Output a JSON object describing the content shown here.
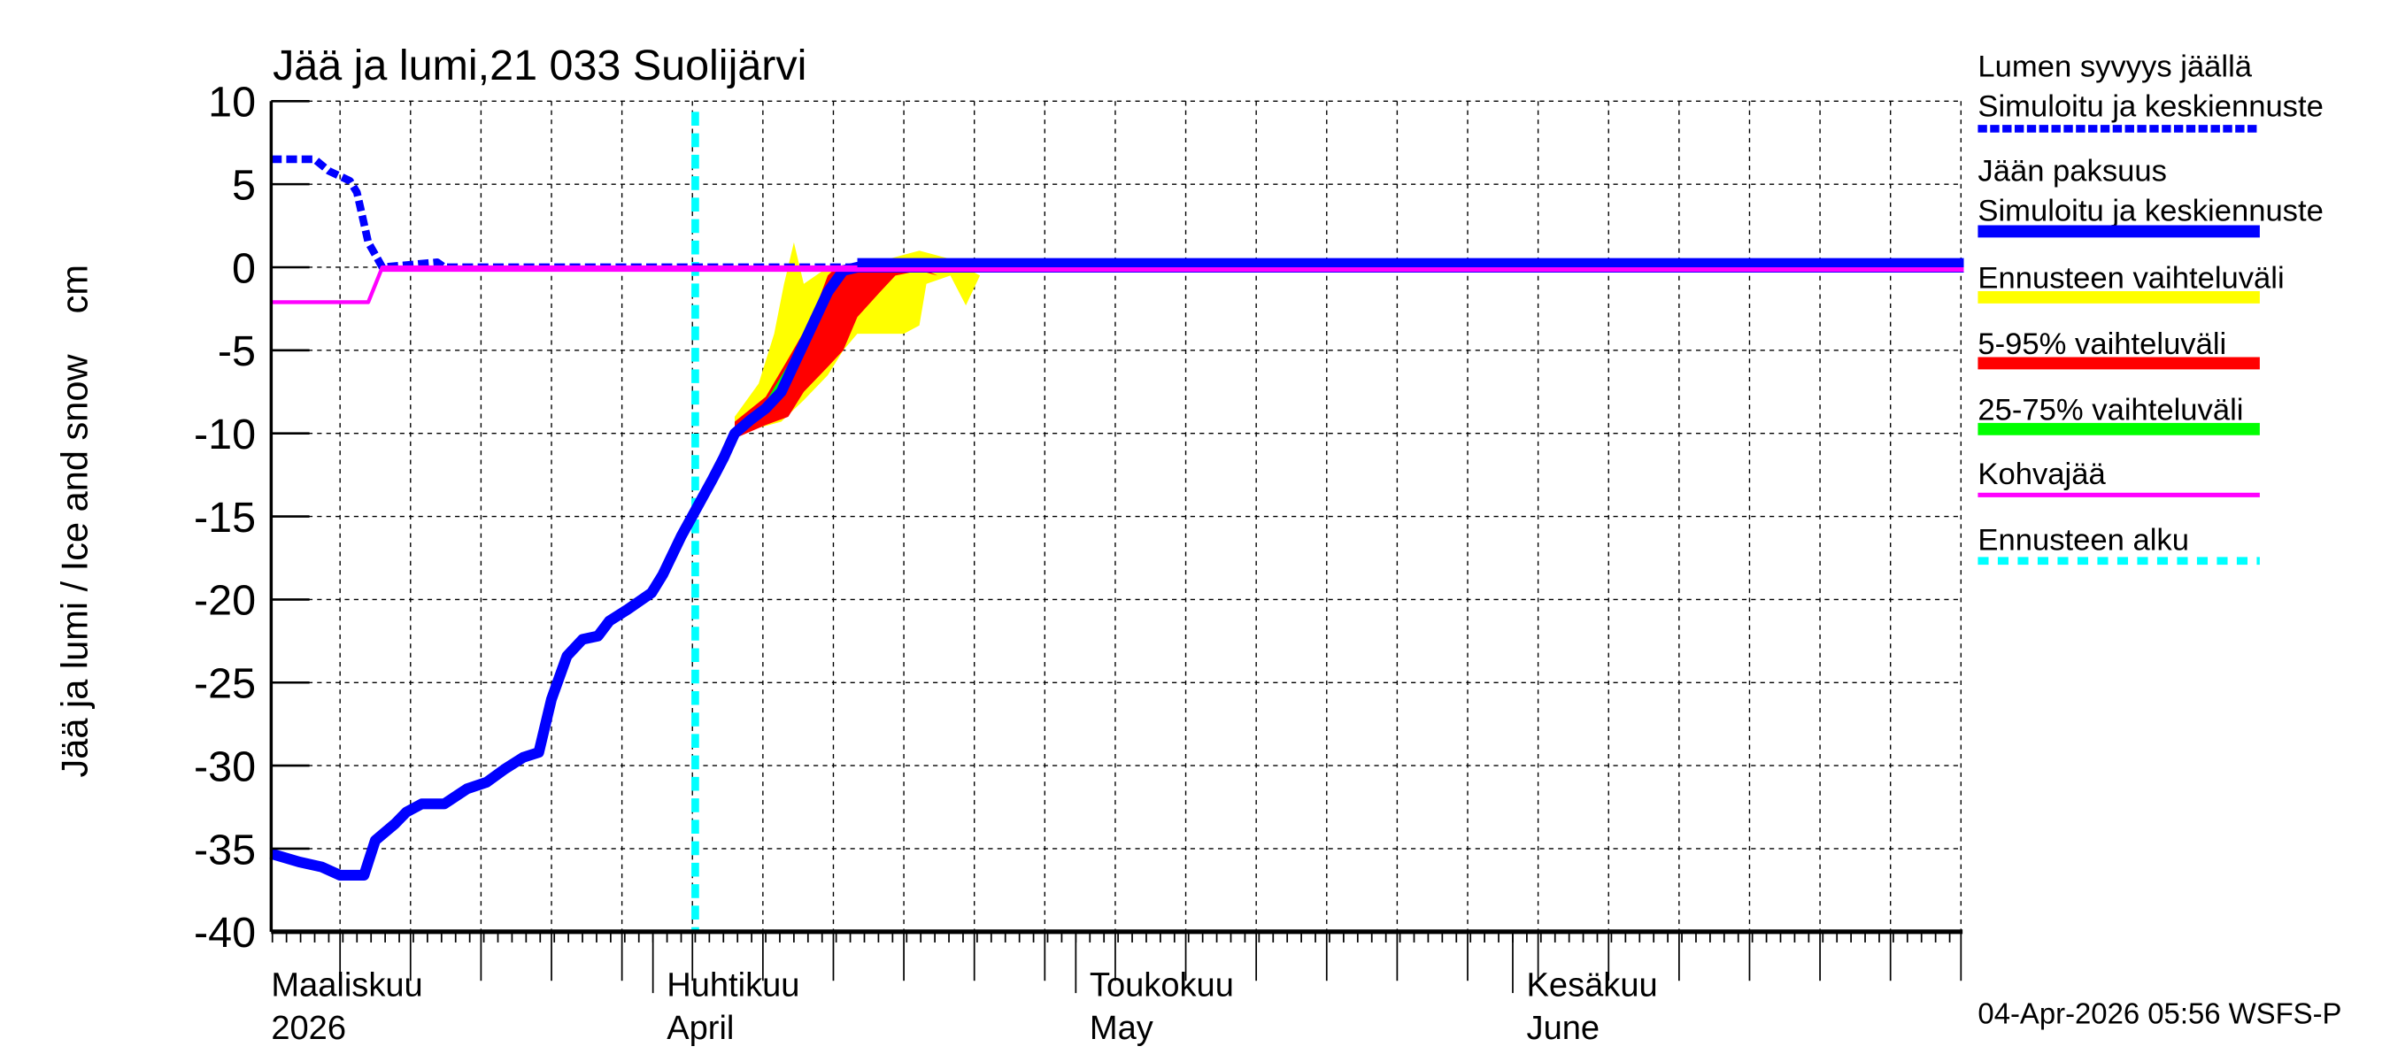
{
  "chart_data": {
    "type": "line",
    "title": "Jää ja lumi,21 033 Suolijärvi",
    "ylabel": "Jää ja lumi / Ice and snow    cm",
    "xlabel": "",
    "x_unit": "days since 2026-03-01",
    "xlim": [
      3.9,
      124
    ],
    "ylim": [
      -40,
      10
    ],
    "yticks": [
      10,
      5,
      0,
      -5,
      -10,
      -15,
      -20,
      -25,
      -30,
      -35,
      -40
    ],
    "grid": true,
    "month_labels": [
      {
        "day": 3.9,
        "line1": "Maaliskuu",
        "line2": "2026"
      },
      {
        "day": 31,
        "line1": "Huhtikuu",
        "line2": "April"
      },
      {
        "day": 61,
        "line1": "Toukokuu",
        "line2": "May"
      },
      {
        "day": 92,
        "line1": "Kesäkuu",
        "line2": "June"
      }
    ],
    "forecast_start_day": 34,
    "series": [
      {
        "name": "Lumen syvyys jäällä — Simuloitu ja keskiennuste",
        "color": "#0000ff",
        "style": "dashed",
        "points": [
          [
            3.9,
            6.5
          ],
          [
            7,
            6.5
          ],
          [
            8,
            5.8
          ],
          [
            9.5,
            5.2
          ],
          [
            10,
            4.5
          ],
          [
            10.8,
            1.5
          ],
          [
            11.8,
            0
          ],
          [
            15.7,
            0.3
          ],
          [
            16.2,
            0
          ],
          [
            45.5,
            0
          ]
        ]
      },
      {
        "name": "Jään paksuus — Simuloitu ja keskiennuste",
        "color": "#0000ff",
        "style": "solid",
        "points": [
          [
            3.9,
            -35.3
          ],
          [
            5.9,
            -35.8
          ],
          [
            7.5,
            -36.1
          ],
          [
            8.8,
            -36.6
          ],
          [
            10.5,
            -36.6
          ],
          [
            11.3,
            -34.5
          ],
          [
            12.7,
            -33.5
          ],
          [
            13.5,
            -32.8
          ],
          [
            14.6,
            -32.3
          ],
          [
            16.2,
            -32.3
          ],
          [
            17.8,
            -31.4
          ],
          [
            19.2,
            -31.0
          ],
          [
            20.5,
            -30.2
          ],
          [
            21.8,
            -29.5
          ],
          [
            22.9,
            -29.2
          ],
          [
            23.8,
            -26
          ],
          [
            24.9,
            -23.4
          ],
          [
            26,
            -22.4
          ],
          [
            27.1,
            -22.2
          ],
          [
            27.9,
            -21.3
          ],
          [
            29.2,
            -20.6
          ],
          [
            30.9,
            -19.6
          ],
          [
            31.7,
            -18.5
          ],
          [
            33,
            -16.2
          ],
          [
            34.1,
            -14.5
          ],
          [
            35.2,
            -12.8
          ],
          [
            36,
            -11.5
          ],
          [
            36.8,
            -10.0
          ],
          [
            37.9,
            -9.2
          ],
          [
            39,
            -8.5
          ],
          [
            40.1,
            -7.5
          ],
          [
            41.2,
            -5.5
          ],
          [
            42.3,
            -3.5
          ],
          [
            43.4,
            -1.5
          ],
          [
            44.5,
            -0.2
          ],
          [
            45.5,
            0
          ],
          [
            124,
            0
          ]
        ]
      },
      {
        "name": "Kohvajää",
        "color": "#ff00ff",
        "style": "solid",
        "points": [
          [
            3.9,
            -2.1
          ],
          [
            10.8,
            -2.1
          ],
          [
            11.8,
            0
          ],
          [
            124,
            0
          ]
        ]
      }
    ],
    "bands": [
      {
        "name": "Ennusteen vaihteluväli",
        "color": "#ffff00",
        "upper": [
          [
            36.8,
            -9
          ],
          [
            38.5,
            -7
          ],
          [
            39.6,
            -4
          ],
          [
            40.3,
            -1
          ],
          [
            41,
            1.5
          ],
          [
            41.7,
            -1
          ],
          [
            43.4,
            0
          ],
          [
            47.7,
            0.5
          ],
          [
            49.9,
            1
          ],
          [
            52.1,
            0.5
          ],
          [
            54.2,
            -0.5
          ]
        ],
        "lower": [
          [
            36.8,
            -10
          ],
          [
            37.9,
            -9.8
          ],
          [
            40.1,
            -9.3
          ],
          [
            41.7,
            -8
          ],
          [
            43.4,
            -6.5
          ],
          [
            44.5,
            -5
          ],
          [
            45.5,
            -4
          ],
          [
            48.8,
            -4
          ],
          [
            49.9,
            -3.5
          ],
          [
            50.4,
            -1
          ],
          [
            52.1,
            -0.5
          ],
          [
            53.2,
            -2.3
          ],
          [
            54.2,
            -0.5
          ]
        ]
      },
      {
        "name": "5-95% vaihteluväli",
        "color": "#ff0000",
        "upper": [
          [
            36.8,
            -9.3
          ],
          [
            39,
            -7.8
          ],
          [
            40.6,
            -5.5
          ],
          [
            42.3,
            -3
          ],
          [
            43.4,
            -0.5
          ],
          [
            44,
            0
          ],
          [
            49.9,
            0
          ],
          [
            51.2,
            -0.5
          ]
        ],
        "lower": [
          [
            36.8,
            -10.3
          ],
          [
            39,
            -9.5
          ],
          [
            40.6,
            -9
          ],
          [
            41.7,
            -7.5
          ],
          [
            43.4,
            -6
          ],
          [
            44.5,
            -5
          ],
          [
            45.5,
            -3
          ],
          [
            47.1,
            -1.5
          ],
          [
            48.2,
            -0.5
          ],
          [
            49.9,
            -0.2
          ],
          [
            51.2,
            -0.5
          ]
        ]
      },
      {
        "name": "25-75% vaihteluväli",
        "color": "#00ff00",
        "upper": [
          [
            36.8,
            -9.6
          ],
          [
            39,
            -8.1
          ],
          [
            41.2,
            -5.0
          ],
          [
            43.4,
            -1.0
          ],
          [
            44.5,
            0
          ],
          [
            45.5,
            0
          ]
        ],
        "lower": [
          [
            36.8,
            -10.2
          ],
          [
            39,
            -8.9
          ],
          [
            41.2,
            -6.0
          ],
          [
            43.4,
            -2.0
          ],
          [
            44.5,
            -0.5
          ],
          [
            45.5,
            0
          ]
        ]
      }
    ]
  },
  "legend": [
    {
      "label1": "Lumen syvyys jäällä",
      "label2": "Simuloitu ja keskiennuste",
      "color": "#0000ff",
      "style": "dashed"
    },
    {
      "label1": "Jään paksuus",
      "label2": "Simuloitu ja keskiennuste",
      "color": "#0000ff",
      "style": "solid"
    },
    {
      "label1": "Ennusteen vaihteluväli",
      "color": "#ffff00",
      "style": "solid"
    },
    {
      "label1": "5-95% vaihteluväli",
      "color": "#ff0000",
      "style": "solid"
    },
    {
      "label1": "25-75% vaihteluväli",
      "color": "#00ff00",
      "style": "solid"
    },
    {
      "label1": "Kohvajää",
      "color": "#ff00ff",
      "style": "thin"
    },
    {
      "label1": "Ennusteen alku",
      "color": "#00ffff",
      "style": "dotted"
    }
  ],
  "footer": "04-Apr-2026 05:56 WSFS-P"
}
